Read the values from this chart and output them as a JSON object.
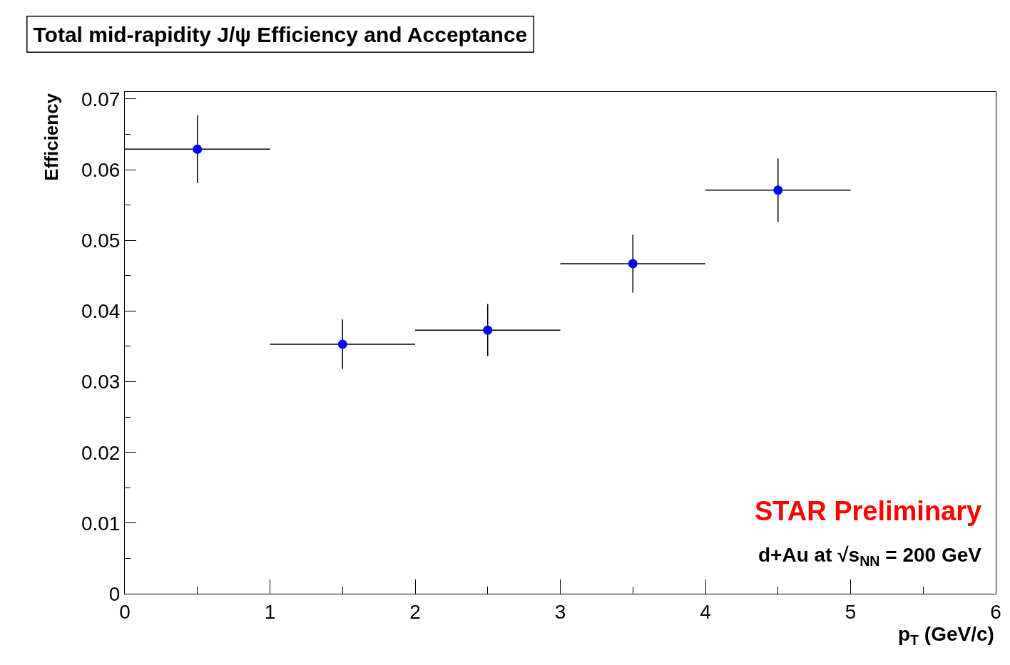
{
  "chart_data": {
    "type": "scatter",
    "title": "Total mid-rapidity J/ψ Efficiency and Acceptance",
    "xlabel": "p$_{T}$ (GeV/c)",
    "ylabel": "Efficiency",
    "x": [
      0.5,
      1.5,
      2.5,
      3.5,
      4.5
    ],
    "series": [
      {
        "color": "#0000ff",
        "values": [
          0.0629,
          0.0353,
          0.0373,
          0.0467,
          0.0571
        ],
        "errors": [
          0.0048,
          0.0035,
          0.0037,
          0.0041,
          0.0045
        ],
        "xerrors": [
          0.5,
          0.5,
          0.5,
          0.5,
          0.5
        ]
      }
    ],
    "xlim": [
      0,
      6
    ],
    "xticks": [
      0,
      1,
      2,
      3,
      4,
      5,
      6
    ],
    "ylim": [
      0,
      0.071
    ],
    "yticks": [
      0,
      0.01,
      0.02,
      0.03,
      0.04,
      0.05,
      0.06,
      0.07
    ],
    "annotations": [
      "STAR Preliminary",
      "d+Au at √s$_{NN}$ = 200 GeV"
    ],
    "marker": "circle",
    "legend": false
  }
}
